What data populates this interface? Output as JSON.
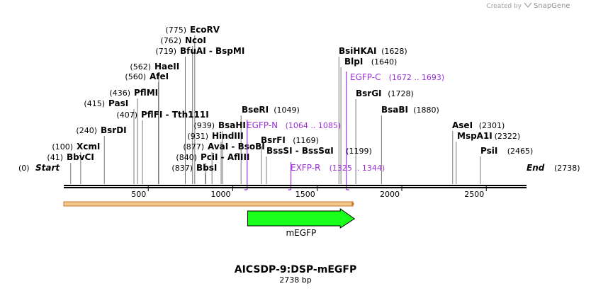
{
  "credit": {
    "prefix": "Created by",
    "brand": "SnapGene"
  },
  "map": {
    "length": 2738,
    "title": "AICSDP-9:DSP-mEGFP",
    "subtitle": "2738 bp",
    "start_label": "Start",
    "start_pos": "(0)",
    "end_label": "End",
    "end_pos": "(2738)",
    "ticks": [
      {
        "value": 500,
        "label": "500"
      },
      {
        "value": 1000,
        "label": "1000"
      },
      {
        "value": 1500,
        "label": "1500"
      },
      {
        "value": 2000,
        "label": "2000"
      },
      {
        "value": 2500,
        "label": "2500"
      }
    ]
  },
  "sites_left": [
    {
      "name": "BbvCI",
      "pos": "(41)",
      "position": 41
    },
    {
      "name": "XcmI",
      "pos": "(100)",
      "position": 100
    },
    {
      "name": "BsrDI",
      "pos": "(240)",
      "position": 240
    },
    {
      "name": "PflFI - Tth111I",
      "pos": "(407)",
      "position": 407
    },
    {
      "name": "PasI",
      "pos": "(415)",
      "position": 415
    },
    {
      "name": "PflMI",
      "pos": "(436)",
      "position": 436
    },
    {
      "name": "AfeI",
      "pos": "(560)",
      "position": 560
    },
    {
      "name": "HaeII",
      "pos": "(562)",
      "position": 562
    },
    {
      "name": "BfuAI - BspMI",
      "pos": "(719)",
      "position": 719
    },
    {
      "name": "NcoI",
      "pos": "(762)",
      "position": 762
    },
    {
      "name": "EcoRV",
      "pos": "(775)",
      "position": 775
    },
    {
      "name": "BbsI",
      "pos": "(837)",
      "position": 837
    },
    {
      "name": "PciI - AflIII",
      "pos": "(840)",
      "position": 840
    },
    {
      "name": "AvaI - BsoBI",
      "pos": "(877)",
      "position": 877
    },
    {
      "name": "HindIII",
      "pos": "(931)",
      "position": 931
    },
    {
      "name": "BsaHI",
      "pos": "(939)",
      "position": 939
    }
  ],
  "sites_right": [
    {
      "name": "BseRI",
      "pos": "(1049)",
      "position": 1049
    },
    {
      "name": "BsrFI",
      "pos": "(1169)",
      "position": 1169
    },
    {
      "name": "BssSI - BssSαI",
      "pos": "(1199)",
      "position": 1199
    },
    {
      "name": "BsiHKAI",
      "pos": "(1628)",
      "position": 1628
    },
    {
      "name": "BlpI",
      "pos": "(1640)",
      "position": 1640
    },
    {
      "name": "BsrGI",
      "pos": "(1728)",
      "position": 1728
    },
    {
      "name": "BsaBI",
      "pos": "(1880)",
      "position": 1880
    },
    {
      "name": "AseI",
      "pos": "(2301)",
      "position": 2301
    },
    {
      "name": "MspA1I",
      "pos": "(2322)",
      "position": 2322
    },
    {
      "name": "PsiI",
      "pos": "(2465)",
      "position": 2465
    }
  ],
  "primers": [
    {
      "name": "EGFP-N",
      "range": "(1064 .. 1085)",
      "start": 1064,
      "end": 1085,
      "strand": "reverse"
    },
    {
      "name": "EXFP-R",
      "range": "(1325 .. 1344)",
      "start": 1325,
      "end": 1344,
      "strand": "reverse"
    },
    {
      "name": "EGFP-C",
      "range": "(1672 .. 1693)",
      "start": 1672,
      "end": 1693,
      "strand": "forward"
    }
  ],
  "features": [
    {
      "name": "mEGFP",
      "start": 1004,
      "end": 1720,
      "strand": "forward",
      "color": "#19ff19"
    }
  ],
  "orf": {
    "start": 0,
    "end": 1720,
    "color": "#f3c88a"
  },
  "colors": {
    "primer": "#9b30d9",
    "feature": "#19ff19",
    "orf": "#f3c88a",
    "leader": "#777777"
  }
}
